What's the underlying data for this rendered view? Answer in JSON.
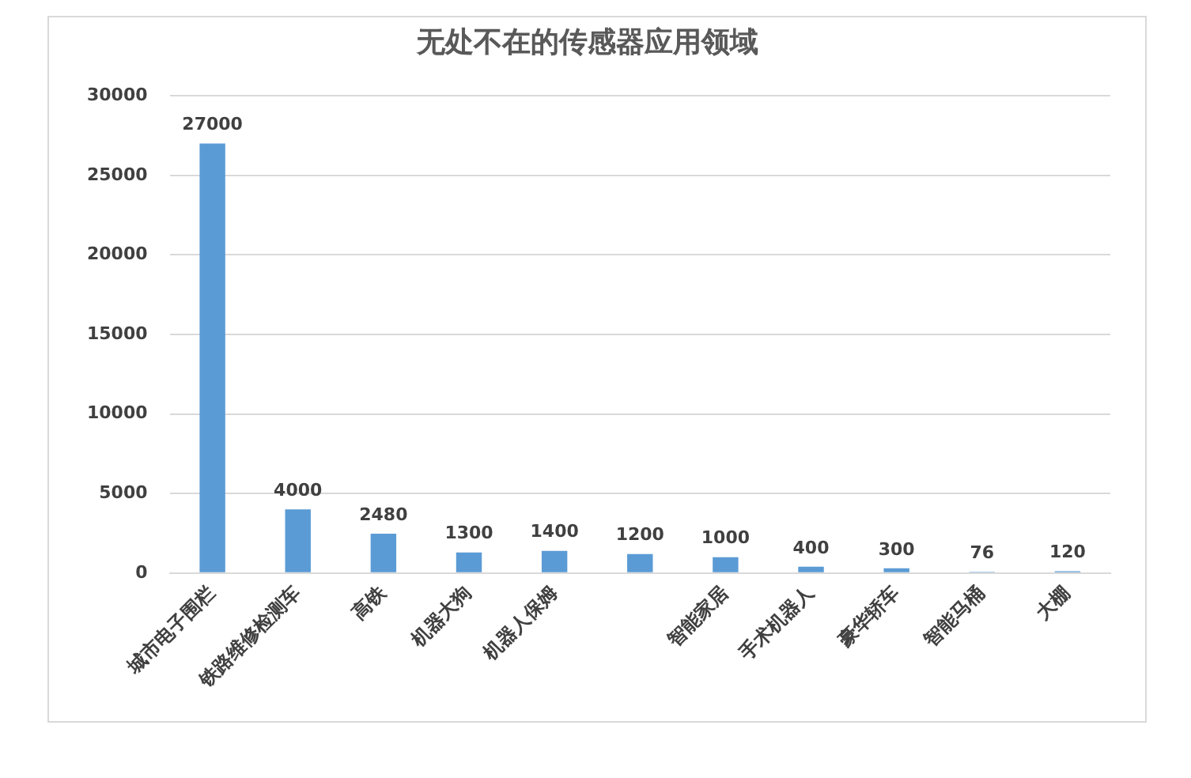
{
  "chart_data": {
    "type": "bar",
    "title": "无处不在的传感器应用领域",
    "categories": [
      "城市电子围栏",
      "铁路维修检测车",
      "高铁",
      "机器大狗",
      "机器人保姆",
      null,
      "智能家居",
      "手术机器人",
      "豪华轿车",
      "智能马桶",
      "大棚"
    ],
    "values": [
      27000,
      4000,
      2480,
      1300,
      1400,
      1200,
      1000,
      400,
      300,
      76,
      120
    ],
    "color": "#5b9bd5",
    "ylim": [
      0,
      30000
    ],
    "yticks": [
      0,
      5000,
      10000,
      15000,
      20000,
      25000,
      30000
    ],
    "grid": "y",
    "data_labels": true
  }
}
